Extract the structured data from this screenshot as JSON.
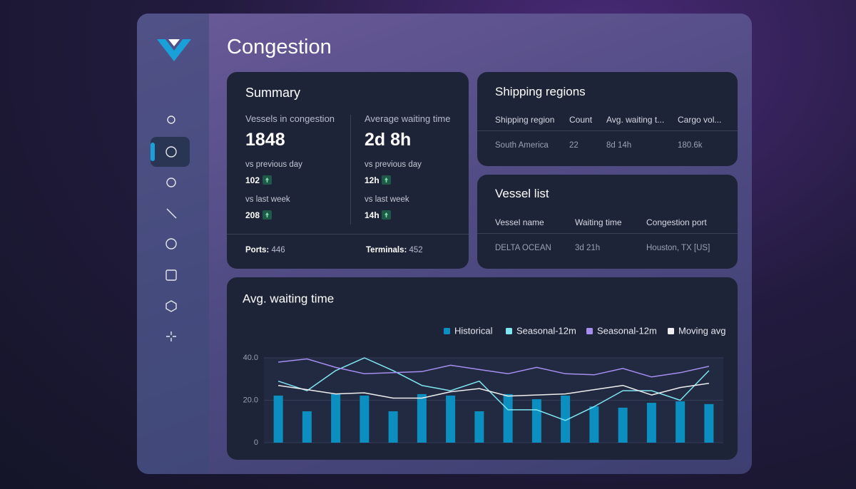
{
  "header": {
    "title": "Congestion"
  },
  "summary": {
    "title": "Summary",
    "metrics": [
      {
        "label": "Vessels in congestion",
        "value": "1848",
        "comparisons": [
          {
            "label": "vs previous day",
            "value": "102"
          },
          {
            "label": "vs last week",
            "value": "208"
          }
        ]
      },
      {
        "label": "Average waiting time",
        "value": "2d 8h",
        "comparisons": [
          {
            "label": "vs previous day",
            "value": "12h"
          },
          {
            "label": "vs last week",
            "value": "14h"
          }
        ]
      }
    ],
    "footer": [
      {
        "label": "Ports:",
        "value": "446"
      },
      {
        "label": "Terminals:",
        "value": "452"
      }
    ]
  },
  "shipping_regions": {
    "title": "Shipping regions",
    "columns": [
      "Shipping region",
      "Count",
      "Avg. waiting t...",
      "Cargo vol..."
    ],
    "rows": [
      [
        "South America",
        "22",
        "8d 14h",
        "180.6k"
      ]
    ]
  },
  "vessel_list": {
    "title": "Vessel list",
    "columns": [
      "Vessel name",
      "Waiting time",
      "Congestion port"
    ],
    "rows": [
      [
        "DELTA OCEAN",
        "3d 21h",
        "Houston, TX [US]"
      ]
    ]
  },
  "chart_data": {
    "type": "bar",
    "title": "Avg. waiting time",
    "categories": [
      null,
      null,
      null,
      null,
      null,
      null,
      null,
      null,
      null,
      null,
      null,
      null,
      null,
      null,
      null,
      null
    ],
    "series": [
      {
        "name": "Historical",
        "type": "bar",
        "color": "#0b8fc0",
        "values": [
          22.2,
          14.8,
          22.9,
          22.2,
          14.8,
          22.9,
          22.2,
          14.8,
          22.9,
          20.5,
          22.2,
          17.1,
          16.5,
          18.8,
          19.5,
          18.2
        ]
      },
      {
        "name": "Seasonal-12m",
        "type": "line",
        "color": "#7fe6f2",
        "values": [
          29,
          24.5,
          34,
          40,
          34,
          27,
          24.5,
          29,
          15.5,
          15.5,
          10.5,
          17,
          24.5,
          24.5,
          20,
          34
        ]
      },
      {
        "name": "Seasonal-12m",
        "type": "line",
        "color": "#a48ff0",
        "values": [
          38,
          39.5,
          35.5,
          32.5,
          33,
          33.5,
          36.5,
          34.5,
          32.5,
          35.5,
          32.5,
          32,
          35,
          31,
          33,
          36
        ]
      },
      {
        "name": "Moving avg",
        "type": "line",
        "color": "#eeeeee",
        "values": [
          27,
          25,
          23,
          23.5,
          21,
          21,
          24,
          25.5,
          22,
          22.5,
          23,
          25,
          27,
          22.5,
          26,
          28
        ]
      }
    ],
    "ylim": [
      0,
      40
    ],
    "yticks": [
      0,
      {
        "value": 20,
        "label": "20.0"
      },
      {
        "value": 40,
        "label": "40.0"
      }
    ],
    "grid": true
  }
}
